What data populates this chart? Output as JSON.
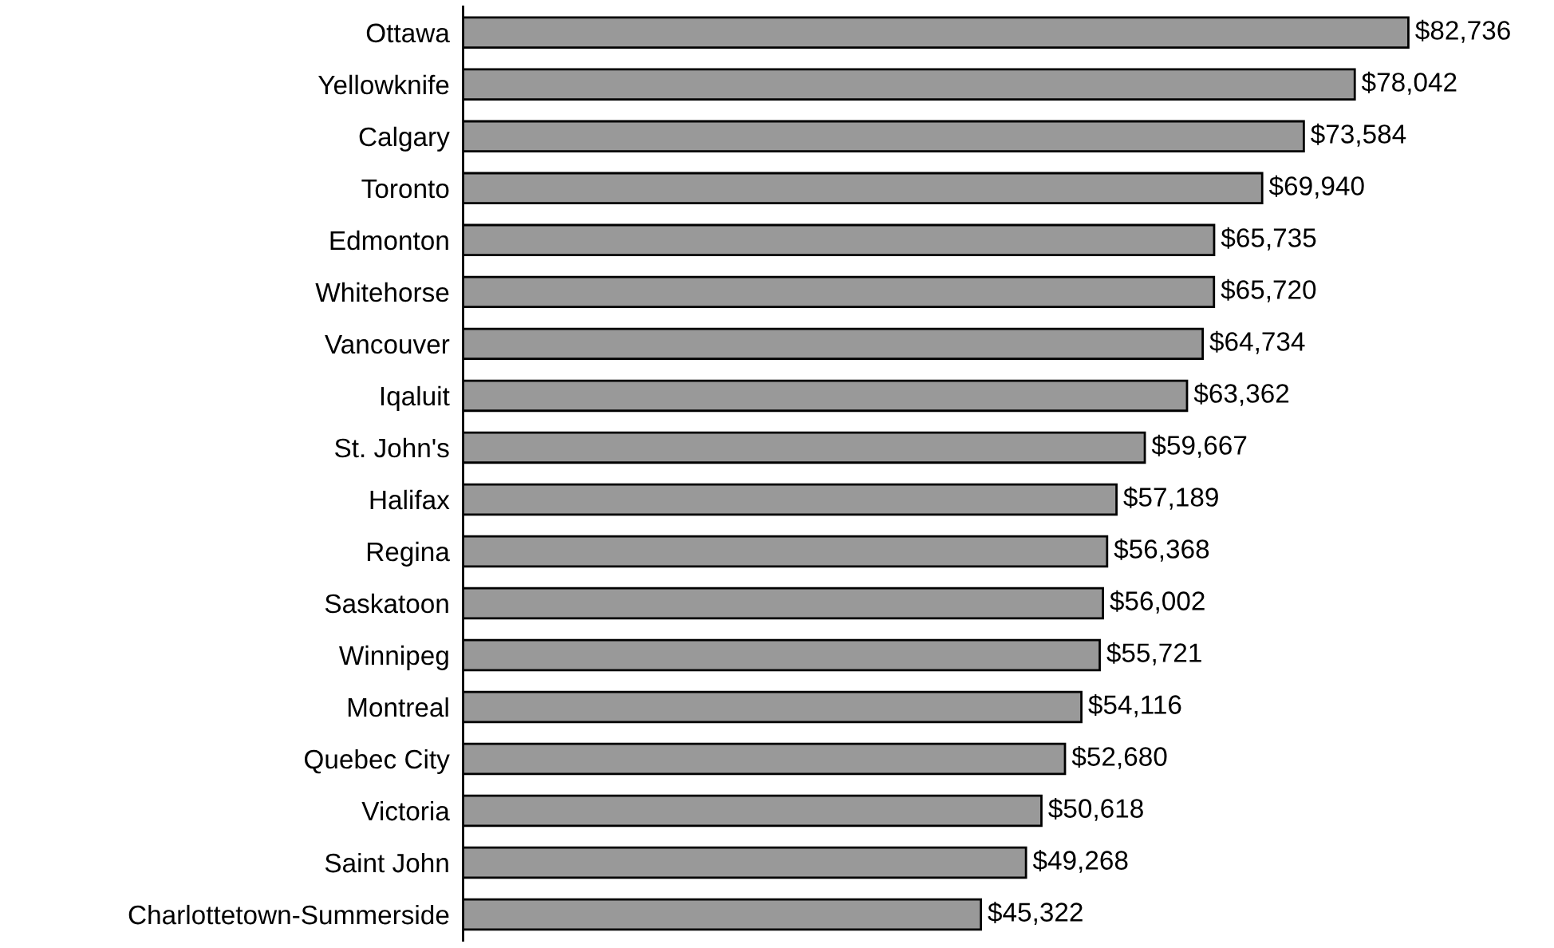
{
  "chart_data": {
    "type": "bar",
    "orientation": "horizontal",
    "categories": [
      "Ottawa",
      "Yellowknife",
      "Calgary",
      "Toronto",
      "Edmonton",
      "Whitehorse",
      "Vancouver",
      "Iqaluit",
      "St. John's",
      "Halifax",
      "Regina",
      "Saskatoon",
      "Winnipeg",
      "Montreal",
      "Quebec City",
      "Victoria",
      "Saint John",
      "Charlottetown-Summerside"
    ],
    "values": [
      82736,
      78042,
      73584,
      69940,
      65735,
      65720,
      64734,
      63362,
      59667,
      57189,
      56368,
      56002,
      55721,
      54116,
      52680,
      50618,
      49268,
      45322
    ],
    "value_labels": [
      "$82,736",
      "$78,042",
      "$73,584",
      "$69,940",
      "$65,735",
      "$65,720",
      "$64,734",
      "$63,362",
      "$59,667",
      "$57,189",
      "$56,368",
      "$56,002",
      "$55,721",
      "$54,116",
      "$52,680",
      "$50,618",
      "$49,268",
      "$45,322"
    ],
    "color": "#999999",
    "grid": false,
    "legend": false
  }
}
